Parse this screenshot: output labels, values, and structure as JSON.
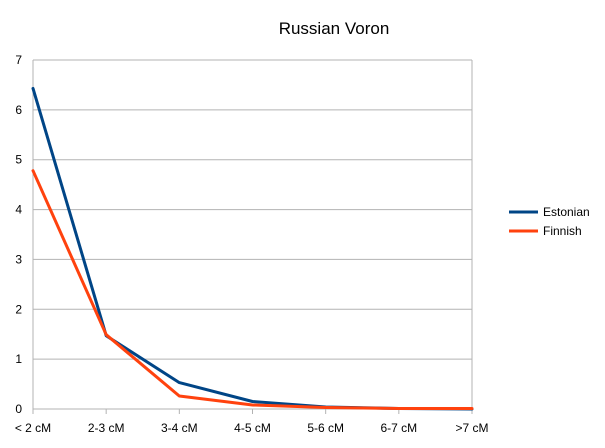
{
  "chart_data": {
    "type": "line",
    "title": "Russian Voron",
    "xlabel": "",
    "ylabel": "",
    "categories": [
      "< 2 cM",
      "2-3 cM",
      "3-4 cM",
      "4-5 cM",
      "5-6 cM",
      "6-7 cM",
      ">7 cM"
    ],
    "ylim": [
      0,
      7
    ],
    "yticks": [
      0,
      1,
      2,
      3,
      4,
      5,
      6,
      7
    ],
    "grid": "horizontal",
    "legend_position": "right",
    "series": [
      {
        "name": "Estonian",
        "color": "#004586",
        "values": [
          6.43,
          1.47,
          0.53,
          0.15,
          0.04,
          0.01,
          0.0
        ]
      },
      {
        "name": "Finnish",
        "color": "#ff420e",
        "values": [
          4.78,
          1.49,
          0.26,
          0.08,
          0.03,
          0.01,
          0.01
        ]
      }
    ]
  }
}
